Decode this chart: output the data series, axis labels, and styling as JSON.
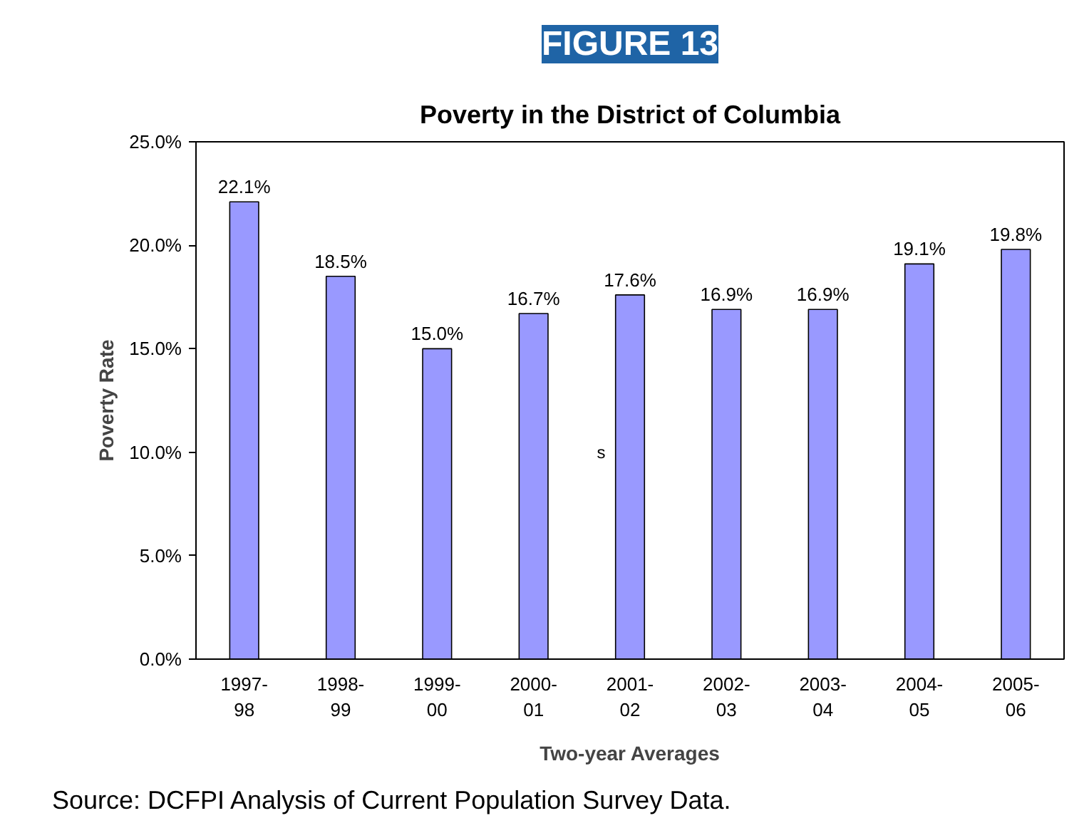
{
  "chart_data": {
    "type": "bar",
    "title": "Poverty in the District of Columbia",
    "xlabel": "Two-year Averages",
    "ylabel": "Poverty Rate",
    "categories": [
      "1997-98",
      "1998-99",
      "1999-00",
      "2000-01",
      "2001-02",
      "2002-03",
      "2003-04",
      "2004-05",
      "2005-06"
    ],
    "values": [
      22.1,
      18.5,
      15.0,
      16.7,
      17.6,
      16.9,
      16.9,
      19.1,
      19.8
    ],
    "value_labels": [
      "22.1%",
      "18.5%",
      "15.0%",
      "16.7%",
      "17.6%",
      "16.9%",
      "16.9%",
      "19.1%",
      "19.8%"
    ],
    "color": "#9999ff",
    "ylim": [
      0,
      25
    ],
    "yticks": [
      {
        "value": 0,
        "label": "0.0%"
      },
      {
        "value": 5,
        "label": "5.0%"
      },
      {
        "value": 10,
        "label": "10.0%"
      },
      {
        "value": 15,
        "label": "15.0%"
      },
      {
        "value": 20,
        "label": "20.0%"
      },
      {
        "value": 25,
        "label": "25.0%"
      }
    ],
    "grid": false,
    "annotations": [
      "FIGURE 13",
      "s",
      "Source:  DCFPI Analysis of Current Population Survey Data."
    ]
  }
}
